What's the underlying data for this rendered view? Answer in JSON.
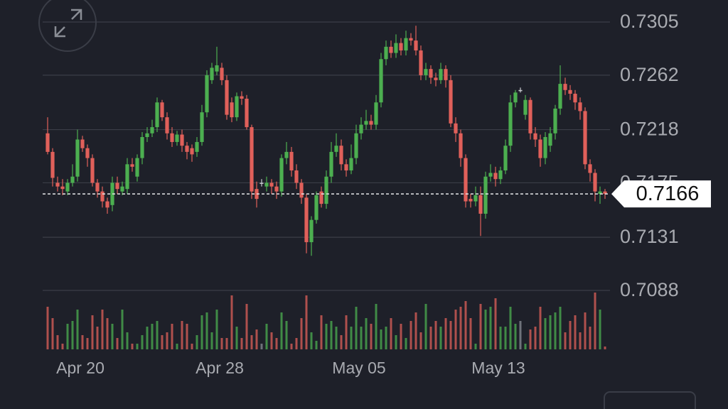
{
  "chart_data": {
    "type": "candlestick",
    "categories": [
      null,
      null,
      null,
      null,
      null,
      null,
      null,
      "Apr 20",
      null,
      null,
      null,
      null,
      null,
      null,
      null,
      null,
      null,
      null,
      null,
      null,
      null,
      null,
      null,
      null,
      null,
      null,
      null,
      null,
      null,
      null,
      null,
      null,
      null,
      null,
      null,
      "Apr 28",
      null,
      null,
      null,
      null,
      null,
      null,
      null,
      null,
      null,
      null,
      null,
      null,
      null,
      null,
      null,
      null,
      null,
      null,
      null,
      null,
      null,
      null,
      null,
      null,
      null,
      null,
      null,
      "May 05",
      null,
      null,
      null,
      null,
      null,
      null,
      null,
      null,
      null,
      null,
      null,
      null,
      null,
      null,
      null,
      null,
      null,
      null,
      null,
      null,
      null,
      null,
      null,
      null,
      null,
      null,
      null,
      "May 13",
      null,
      null,
      null,
      null,
      null,
      null,
      null,
      null,
      null,
      null,
      null,
      null,
      null,
      null,
      null,
      null,
      null,
      null,
      null,
      null,
      null
    ],
    "open": [
      0.7215,
      0.72,
      0.7175,
      0.7172,
      0.7168,
      0.7175,
      0.718,
      0.721,
      0.7203,
      0.7195,
      0.7175,
      0.7168,
      0.716,
      0.7157,
      0.7175,
      0.7168,
      0.717,
      0.719,
      0.718,
      0.7195,
      0.7212,
      0.7215,
      0.722,
      0.724,
      0.7228,
      0.7215,
      0.7208,
      0.7214,
      0.7205,
      0.7203,
      0.72,
      0.7208,
      0.7232,
      0.7258,
      0.7265,
      0.7268,
      0.7258,
      0.724,
      0.7228,
      0.7245,
      0.7243,
      0.722,
      0.717,
      0.7175,
      0.7172,
      0.7175,
      0.7172,
      0.7168,
      0.7195,
      0.72,
      0.7185,
      0.7175,
      0.7163,
      0.7127,
      0.7145,
      0.7168,
      0.7158,
      0.718,
      0.72,
      0.7205,
      0.719,
      0.7185,
      0.7195,
      0.7215,
      0.7222,
      0.7225,
      0.7222,
      0.724,
      0.7275,
      0.7285,
      0.728,
      0.7288,
      0.7282,
      0.7292,
      0.729,
      0.7282,
      0.7262,
      0.7267,
      0.726,
      0.7258,
      0.7267,
      0.7258,
      0.7223,
      0.7215,
      0.7195,
      0.7162,
      0.716,
      0.7165,
      0.715,
      0.718,
      0.7183,
      0.7178,
      0.7185,
      0.7205,
      0.724,
      0.725,
      0.723,
      0.7242,
      0.7215,
      0.721,
      0.7195,
      0.7205,
      0.7215,
      0.7235,
      0.7255,
      0.725,
      0.7247,
      0.724,
      0.7233,
      0.719,
      0.7183,
      0.7166,
      0.7168
    ],
    "high": [
      0.7228,
      0.7203,
      0.718,
      0.7178,
      0.7178,
      0.719,
      0.7218,
      0.7213,
      0.7206,
      0.7198,
      0.7178,
      0.7172,
      0.7163,
      0.718,
      0.718,
      0.7176,
      0.7195,
      0.7195,
      0.7198,
      0.7216,
      0.722,
      0.7226,
      0.7244,
      0.7242,
      0.7232,
      0.722,
      0.7217,
      0.7218,
      0.7208,
      0.7206,
      0.7212,
      0.7238,
      0.7266,
      0.7272,
      0.7285,
      0.7272,
      0.7262,
      0.7244,
      0.7248,
      0.7249,
      0.7246,
      0.7222,
      0.7176,
      0.7178,
      0.718,
      0.7178,
      0.7176,
      0.7198,
      0.7208,
      0.7204,
      0.719,
      0.7178,
      0.7166,
      0.7148,
      0.7168,
      0.7172,
      0.7185,
      0.7208,
      0.7215,
      0.721,
      0.7194,
      0.7206,
      0.7222,
      0.7228,
      0.7234,
      0.723,
      0.7246,
      0.728,
      0.729,
      0.729,
      0.7295,
      0.7292,
      0.7298,
      0.7296,
      0.7302,
      0.7286,
      0.7272,
      0.727,
      0.7264,
      0.7272,
      0.727,
      0.7262,
      0.7228,
      0.7218,
      0.7198,
      0.7166,
      0.7172,
      0.7172,
      0.7184,
      0.719,
      0.7188,
      0.7188,
      0.721,
      0.7246,
      0.725,
      0.7252,
      0.7246,
      0.7244,
      0.722,
      0.7214,
      0.7216,
      0.722,
      0.7238,
      0.727,
      0.726,
      0.7254,
      0.725,
      0.7244,
      0.7236,
      0.7194,
      0.7186,
      0.7172,
      0.717
    ],
    "low": [
      0.7198,
      0.7172,
      0.7168,
      0.7165,
      0.7165,
      0.7172,
      0.7176,
      0.72,
      0.7188,
      0.7172,
      0.7163,
      0.7155,
      0.715,
      0.7152,
      0.7166,
      0.7165,
      0.7166,
      0.7184,
      0.7176,
      0.719,
      0.7208,
      0.7212,
      0.7216,
      0.7225,
      0.721,
      0.7204,
      0.7205,
      0.72,
      0.7194,
      0.7192,
      0.7196,
      0.7205,
      0.7228,
      0.7255,
      0.7262,
      0.7254,
      0.7226,
      0.7224,
      0.7225,
      0.7238,
      0.7218,
      0.7162,
      0.7155,
      0.7172,
      0.7168,
      0.7166,
      0.7162,
      0.7164,
      0.719,
      0.718,
      0.717,
      0.7158,
      0.7118,
      0.7116,
      0.7142,
      0.7155,
      0.7154,
      0.7175,
      0.7196,
      0.7185,
      0.718,
      0.7182,
      0.719,
      0.721,
      0.7218,
      0.7218,
      0.7218,
      0.7236,
      0.727,
      0.7276,
      0.7276,
      0.7278,
      0.7278,
      0.7286,
      0.7278,
      0.7258,
      0.7258,
      0.7255,
      0.7253,
      0.7255,
      0.7252,
      0.722,
      0.7208,
      0.7188,
      0.7155,
      0.7155,
      0.7156,
      0.7132,
      0.7146,
      0.7176,
      0.7172,
      0.7174,
      0.7182,
      0.72,
      0.7236,
      0.7248,
      0.7226,
      0.721,
      0.7204,
      0.7188,
      0.719,
      0.72,
      0.721,
      0.723,
      0.7246,
      0.7242,
      0.7234,
      0.7226,
      0.7186,
      0.7176,
      0.716,
      0.7158,
      0.7162
    ],
    "close": [
      0.72,
      0.7179,
      0.7172,
      0.717,
      0.7175,
      0.718,
      0.721,
      0.7203,
      0.7195,
      0.7175,
      0.7168,
      0.716,
      0.7155,
      0.7175,
      0.717,
      0.7172,
      0.719,
      0.7188,
      0.7195,
      0.7212,
      0.7215,
      0.722,
      0.724,
      0.7228,
      0.7215,
      0.7208,
      0.7214,
      0.7205,
      0.72,
      0.7198,
      0.7208,
      0.7232,
      0.7262,
      0.7268,
      0.727,
      0.7258,
      0.723,
      0.7228,
      0.7245,
      0.7243,
      0.722,
      0.7168,
      0.7162,
      0.7175,
      0.7175,
      0.7172,
      0.7168,
      0.7195,
      0.72,
      0.7185,
      0.7175,
      0.7163,
      0.7127,
      0.7145,
      0.7165,
      0.7158,
      0.718,
      0.72,
      0.7205,
      0.719,
      0.7185,
      0.7195,
      0.7215,
      0.7222,
      0.7225,
      0.7222,
      0.724,
      0.7275,
      0.7285,
      0.728,
      0.7288,
      0.7282,
      0.7292,
      0.729,
      0.7282,
      0.7262,
      0.7267,
      0.726,
      0.7258,
      0.7267,
      0.7258,
      0.7223,
      0.7215,
      0.7195,
      0.716,
      0.716,
      0.7165,
      0.715,
      0.718,
      0.7183,
      0.7178,
      0.7185,
      0.7205,
      0.724,
      0.7248,
      0.725,
      0.7242,
      0.7215,
      0.721,
      0.7195,
      0.7212,
      0.7215,
      0.7235,
      0.7255,
      0.725,
      0.7247,
      0.724,
      0.7233,
      0.719,
      0.7183,
      0.7168,
      0.7168,
      0.7166
    ],
    "volume": [
      75,
      55,
      25,
      10,
      45,
      50,
      70,
      25,
      20,
      60,
      40,
      70,
      55,
      45,
      20,
      70,
      30,
      10,
      10,
      25,
      40,
      45,
      50,
      25,
      30,
      45,
      10,
      50,
      45,
      10,
      25,
      60,
      65,
      30,
      70,
      20,
      20,
      95,
      40,
      20,
      80,
      25,
      35,
      10,
      45,
      30,
      20,
      65,
      50,
      10,
      20,
      55,
      95,
      30,
      15,
      60,
      45,
      50,
      40,
      25,
      60,
      40,
      75,
      40,
      55,
      45,
      80,
      35,
      40,
      55,
      25,
      45,
      20,
      50,
      65,
      30,
      80,
      40,
      50,
      40,
      55,
      50,
      70,
      75,
      85,
      55,
      10,
      80,
      70,
      75,
      90,
      40,
      40,
      75,
      45,
      50,
      10,
      35,
      40,
      75,
      55,
      60,
      65,
      75,
      30,
      50,
      60,
      30,
      65,
      40,
      100,
      70,
      5
    ],
    "up_color": "#4caf50",
    "down_color": "#e0605a",
    "last_price": 0.7166,
    "ylim": [
      0.7088,
      0.7305
    ],
    "yticks": [
      0.7088,
      0.7131,
      0.7175,
      0.7218,
      0.7262,
      0.7305
    ],
    "grid": true
  }
}
